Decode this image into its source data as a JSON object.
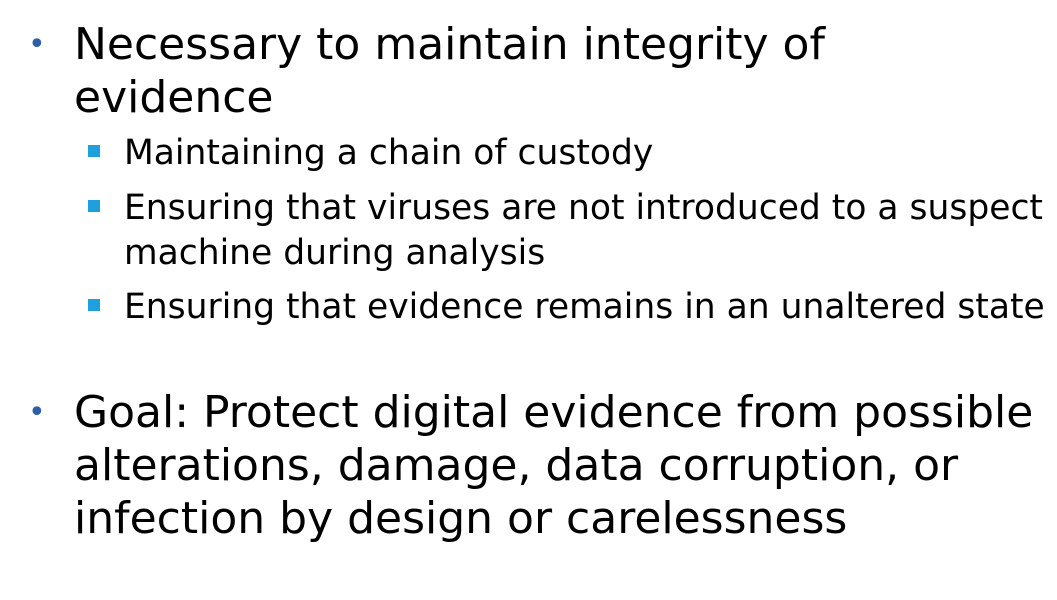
{
  "bullets": [
    {
      "text": "Necessary to maintain integrity of evidence",
      "sub": [
        "Maintaining a chain of custody",
        "Ensuring that viruses are not introduced to a suspect machine during analysis",
        "Ensuring that evidence remains in an unaltered state"
      ]
    },
    {
      "text": "Goal: Protect digital evidence from possible alterations, damage, data corruption, or infection by design or carelessness"
    }
  ],
  "colors": {
    "bullet_l1": "#2f5fa8",
    "bullet_l2": "#1ea0dc",
    "text": "#000000"
  }
}
